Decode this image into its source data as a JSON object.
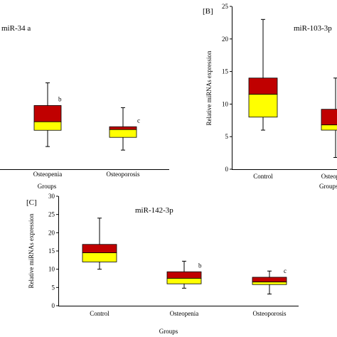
{
  "chart_data": [
    {
      "id": "A",
      "type": "box",
      "panel_label": "",
      "title": "miR-34 a",
      "xlabel": "Groups",
      "ylabel": "",
      "categories": [
        "Osteopenia",
        "Osteoporosis"
      ],
      "boxes": [
        {
          "category": "Osteopenia",
          "min": 3.2,
          "q1": 5.5,
          "median": 6.7,
          "q3": 9.0,
          "max": 12.2,
          "sig": "b"
        },
        {
          "category": "Osteoporosis",
          "min": 2.7,
          "q1": 4.5,
          "median": 5.6,
          "q3": 6.0,
          "max": 8.7,
          "sig": "c"
        }
      ],
      "ylim": [
        0,
        23
      ],
      "yticks": [],
      "box_colors": {
        "upper": "#c00000",
        "lower": "#ffff00"
      }
    },
    {
      "id": "B",
      "type": "box",
      "panel_label": "[B]",
      "title": "miR-103-3p",
      "xlabel": "Groups",
      "ylabel": "Relative miRNAs expression",
      "categories": [
        "Control",
        "Osteopenia"
      ],
      "boxes": [
        {
          "category": "Control",
          "min": 6.0,
          "q1": 8.0,
          "median": 11.5,
          "q3": 14.0,
          "max": 23.0,
          "sig": ""
        },
        {
          "category": "Osteopenia",
          "min": 1.8,
          "q1": 6.0,
          "median": 6.8,
          "q3": 9.2,
          "max": 14.0,
          "sig": ""
        }
      ],
      "ylim": [
        0,
        25
      ],
      "yticks": [
        0,
        5,
        10,
        15,
        20,
        25
      ],
      "box_colors": {
        "upper": "#c00000",
        "lower": "#ffff00"
      }
    },
    {
      "id": "C",
      "type": "box",
      "panel_label": "[C]",
      "title": "miR-142-3p",
      "xlabel": "Groups",
      "ylabel": "Relative miRNAs expression",
      "categories": [
        "Control",
        "Osteopenia",
        "Osteoporosis"
      ],
      "boxes": [
        {
          "category": "Control",
          "min": 10.0,
          "q1": 12.0,
          "median": 14.5,
          "q3": 16.8,
          "max": 24.0,
          "sig": ""
        },
        {
          "category": "Osteopenia",
          "min": 4.8,
          "q1": 6.0,
          "median": 7.5,
          "q3": 9.3,
          "max": 12.2,
          "sig": "b"
        },
        {
          "category": "Osteoporosis",
          "min": 3.2,
          "q1": 5.8,
          "median": 6.5,
          "q3": 7.8,
          "max": 9.5,
          "sig": "c"
        }
      ],
      "ylim": [
        0,
        30
      ],
      "yticks": [
        0,
        5,
        10,
        15,
        20,
        25,
        30
      ],
      "box_colors": {
        "upper": "#c00000",
        "lower": "#ffff00"
      }
    }
  ]
}
